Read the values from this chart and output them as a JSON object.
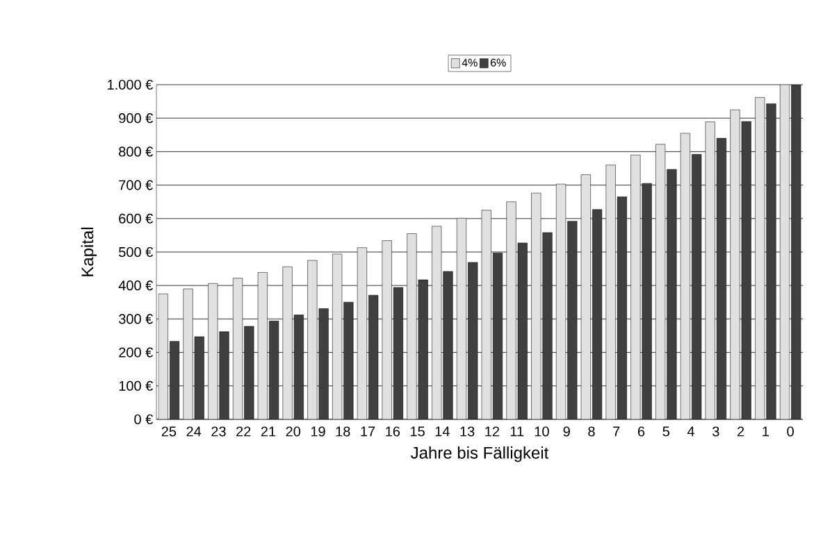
{
  "chart_data": {
    "type": "bar",
    "xlabel": "Jahre bis Fälligkeit",
    "ylabel": "Kapital",
    "categories": [
      "25",
      "24",
      "23",
      "22",
      "21",
      "20",
      "19",
      "18",
      "17",
      "16",
      "15",
      "14",
      "13",
      "12",
      "11",
      "10",
      "9",
      "8",
      "7",
      "6",
      "5",
      "4",
      "3",
      "2",
      "1",
      "0"
    ],
    "series": [
      {
        "name": "4%",
        "color": "#e0e0e0",
        "values": [
          375,
          390,
          406,
          422,
          439,
          456,
          475,
          494,
          513,
          534,
          555,
          577,
          601,
          625,
          650,
          676,
          703,
          731,
          760,
          790,
          822,
          855,
          889,
          925,
          962,
          1000
        ]
      },
      {
        "name": "6%",
        "color": "#404040",
        "values": [
          233,
          247,
          262,
          278,
          294,
          312,
          331,
          350,
          371,
          394,
          417,
          442,
          469,
          497,
          527,
          558,
          592,
          627,
          665,
          705,
          747,
          792,
          840,
          890,
          943,
          1000
        ]
      }
    ],
    "ylim": [
      0,
      1000
    ],
    "yticks": [
      {
        "value": 0,
        "label": "0 €"
      },
      {
        "value": 100,
        "label": "100 €"
      },
      {
        "value": 200,
        "label": "200 €"
      },
      {
        "value": 300,
        "label": "300 €"
      },
      {
        "value": 400,
        "label": "400 €"
      },
      {
        "value": 500,
        "label": "500 €"
      },
      {
        "value": 600,
        "label": "600 €"
      },
      {
        "value": 700,
        "label": "700 €"
      },
      {
        "value": 800,
        "label": "800 €"
      },
      {
        "value": 900,
        "label": "900 €"
      },
      {
        "value": 1000,
        "label": "1.000 €"
      }
    ],
    "grid": "y",
    "legend": "top"
  }
}
